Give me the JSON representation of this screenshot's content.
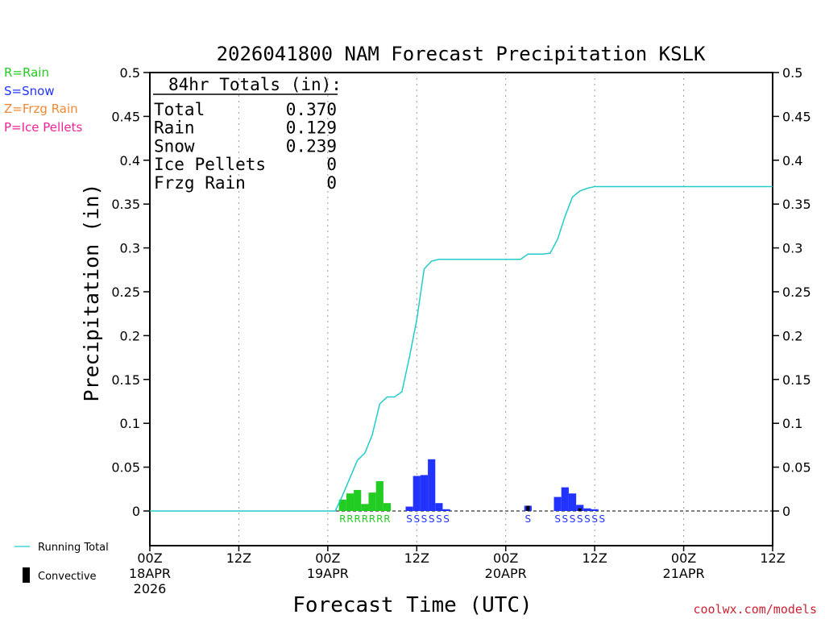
{
  "title": "2026041800 NAM Forecast Precipitation KSLK",
  "legend": {
    "rain": "R=Rain",
    "snow": "S=Snow",
    "frzg": "Z=Frzg Rain",
    "ice": "P=Ice Pellets",
    "running_total": "Running Total",
    "convective": "Convective"
  },
  "colors": {
    "rain": "#22cc22",
    "snow": "#2233ff",
    "frzg": "#ee8833",
    "ice": "#ee2299",
    "running_total": "#22cccc",
    "convective": "#000000"
  },
  "totals_box": {
    "header": "84hr Totals (in):",
    "rows": [
      {
        "label": "Total",
        "value": "0.370"
      },
      {
        "label": "Rain",
        "value": "0.129"
      },
      {
        "label": "Snow",
        "value": "0.239"
      },
      {
        "label": "Ice Pellets",
        "value": "0"
      },
      {
        "label": "Frzg Rain",
        "value": "0"
      }
    ]
  },
  "credit": "coolwx.com/models",
  "chart_data": {
    "type": "bar",
    "title": "2026041800 NAM Forecast Precipitation KSLK",
    "xlabel": "Forecast Time (UTC)",
    "ylabel": "Precipitation (in)",
    "xlim": [
      0,
      84
    ],
    "ylim": [
      -0.04,
      0.5
    ],
    "y_ticks": [
      0,
      0.05,
      0.1,
      0.15,
      0.2,
      0.25,
      0.3,
      0.35,
      0.4,
      0.45,
      0.5
    ],
    "y_tick_labels": [
      "0",
      "0.05",
      "0.1",
      "0.15",
      "0.2",
      "0.25",
      "0.3",
      "0.35",
      "0.4",
      "0.45",
      "0.5"
    ],
    "x_ticks": [
      {
        "hour": 0,
        "lines": [
          "00Z",
          "18APR",
          "2026"
        ]
      },
      {
        "hour": 12,
        "lines": [
          "12Z"
        ]
      },
      {
        "hour": 24,
        "lines": [
          "00Z",
          "19APR"
        ]
      },
      {
        "hour": 36,
        "lines": [
          "12Z"
        ]
      },
      {
        "hour": 48,
        "lines": [
          "00Z",
          "20APR"
        ]
      },
      {
        "hour": 60,
        "lines": [
          "12Z"
        ]
      },
      {
        "hour": 72,
        "lines": [
          "00Z",
          "21APR"
        ]
      },
      {
        "hour": 84,
        "lines": [
          "12Z"
        ]
      }
    ],
    "gridlines": "vertical dotted",
    "bar_width_hours": 1,
    "bars": [
      {
        "hour": 26,
        "value": 0.013,
        "type": "rain"
      },
      {
        "hour": 27,
        "value": 0.02,
        "type": "rain"
      },
      {
        "hour": 28,
        "value": 0.024,
        "type": "rain"
      },
      {
        "hour": 29,
        "value": 0.008,
        "type": "rain"
      },
      {
        "hour": 30,
        "value": 0.021,
        "type": "rain"
      },
      {
        "hour": 31,
        "value": 0.034,
        "type": "rain"
      },
      {
        "hour": 32,
        "value": 0.009,
        "type": "rain"
      },
      {
        "hour": 35,
        "value": 0.005,
        "type": "snow"
      },
      {
        "hour": 36,
        "value": 0.04,
        "type": "snow"
      },
      {
        "hour": 37,
        "value": 0.041,
        "type": "snow"
      },
      {
        "hour": 38,
        "value": 0.059,
        "type": "snow"
      },
      {
        "hour": 39,
        "value": 0.009,
        "type": "snow"
      },
      {
        "hour": 40,
        "value": 0.002,
        "type": "snow"
      },
      {
        "hour": 51,
        "value": 0.006,
        "type": "snow"
      },
      {
        "hour": 55,
        "value": 0.016,
        "type": "snow"
      },
      {
        "hour": 56,
        "value": 0.027,
        "type": "snow"
      },
      {
        "hour": 57,
        "value": 0.02,
        "type": "snow"
      },
      {
        "hour": 58,
        "value": 0.007,
        "type": "snow"
      },
      {
        "hour": 59,
        "value": 0.003,
        "type": "snow"
      },
      {
        "hour": 60,
        "value": 0.002,
        "type": "snow"
      }
    ],
    "convective_bars": [
      {
        "hour": 51,
        "value": 0.006
      },
      {
        "hour": 58,
        "value": 0.003
      }
    ],
    "type_labels": [
      {
        "hour": 26,
        "text": "R",
        "type": "rain"
      },
      {
        "hour": 27,
        "text": "R",
        "type": "rain"
      },
      {
        "hour": 28,
        "text": "R",
        "type": "rain"
      },
      {
        "hour": 29,
        "text": "R",
        "type": "rain"
      },
      {
        "hour": 30,
        "text": "R",
        "type": "rain"
      },
      {
        "hour": 31,
        "text": "R",
        "type": "rain"
      },
      {
        "hour": 32,
        "text": "R",
        "type": "rain"
      },
      {
        "hour": 35,
        "text": "S",
        "type": "snow"
      },
      {
        "hour": 36,
        "text": "S",
        "type": "snow"
      },
      {
        "hour": 37,
        "text": "S",
        "type": "snow"
      },
      {
        "hour": 38,
        "text": "S",
        "type": "snow"
      },
      {
        "hour": 39,
        "text": "S",
        "type": "snow"
      },
      {
        "hour": 40,
        "text": "S",
        "type": "snow"
      },
      {
        "hour": 51,
        "text": "S",
        "type": "snow"
      },
      {
        "hour": 55,
        "text": "S",
        "type": "snow"
      },
      {
        "hour": 56,
        "text": "S",
        "type": "snow"
      },
      {
        "hour": 57,
        "text": "S",
        "type": "snow"
      },
      {
        "hour": 58,
        "text": "S",
        "type": "snow"
      },
      {
        "hour": 59,
        "text": "S",
        "type": "snow"
      },
      {
        "hour": 60,
        "text": "S",
        "type": "snow"
      },
      {
        "hour": 61,
        "text": "S",
        "type": "snow"
      }
    ],
    "running_total": {
      "name": "Running Total",
      "x": [
        0,
        25,
        26,
        27,
        28,
        29,
        30,
        31,
        32,
        33,
        34,
        35,
        36,
        37,
        38,
        39,
        40,
        41,
        42,
        43,
        44,
        45,
        46,
        47,
        48,
        49,
        50,
        51,
        52,
        53,
        54,
        55,
        56,
        57,
        58,
        59,
        60,
        61,
        62,
        84
      ],
      "y": [
        0,
        0,
        0.018,
        0.038,
        0.058,
        0.066,
        0.087,
        0.122,
        0.13,
        0.13,
        0.136,
        0.175,
        0.218,
        0.276,
        0.285,
        0.287,
        0.287,
        0.287,
        0.287,
        0.287,
        0.287,
        0.287,
        0.287,
        0.287,
        0.287,
        0.287,
        0.287,
        0.293,
        0.293,
        0.293,
        0.294,
        0.31,
        0.336,
        0.358,
        0.365,
        0.368,
        0.37,
        0.37,
        0.37,
        0.37
      ]
    }
  }
}
